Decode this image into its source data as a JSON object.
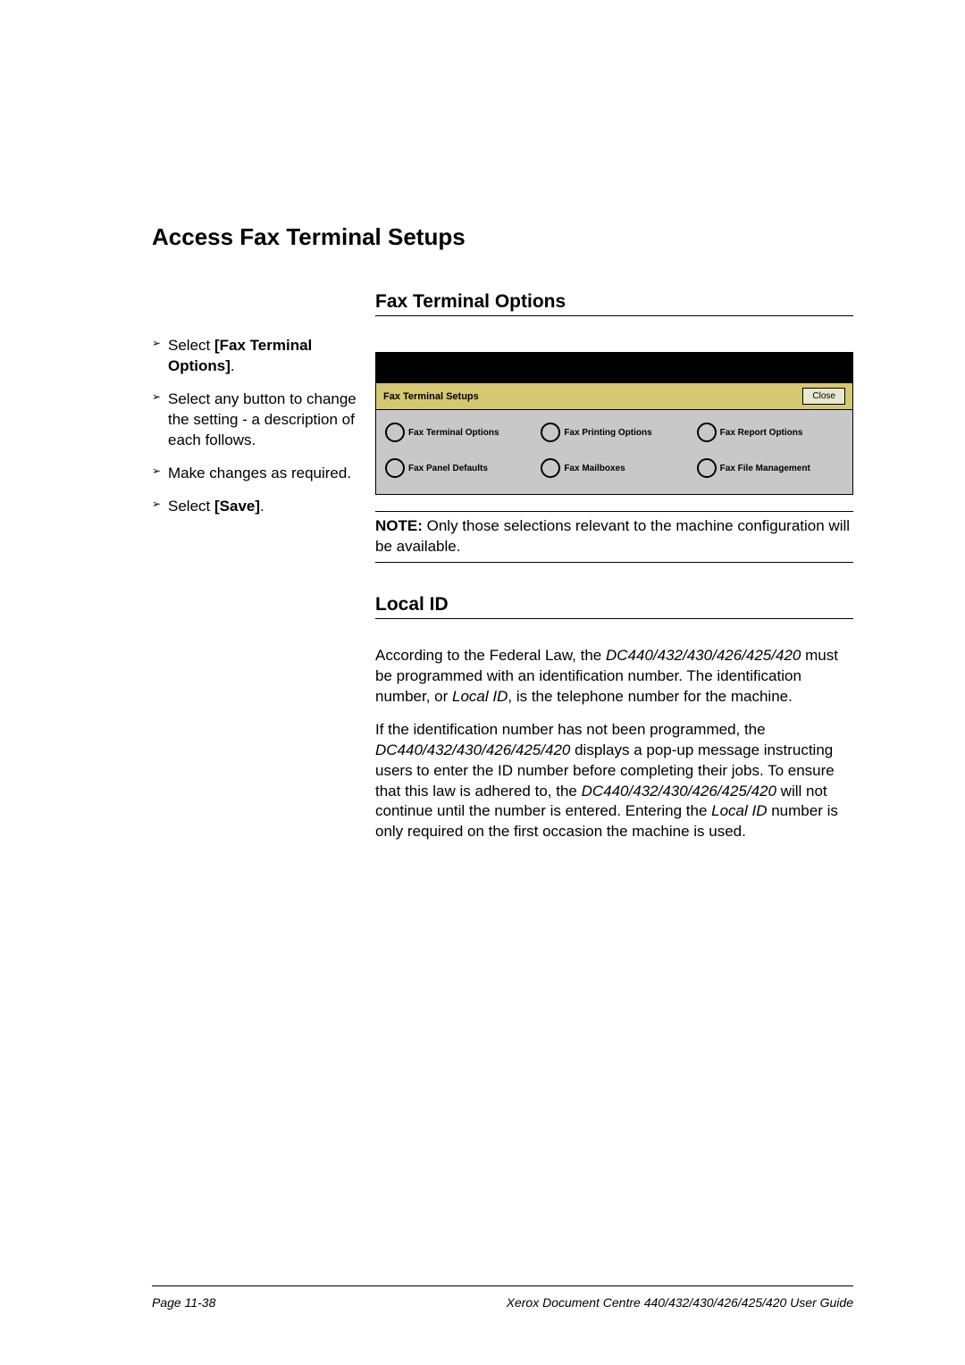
{
  "heading_main": "Access Fax Terminal Setups",
  "section_fax_terminal": {
    "title": "Fax Terminal Options",
    "bullets": [
      {
        "pre": "Select ",
        "bold": "[Fax Terminal Options]",
        "post": "."
      },
      {
        "pre": "Select any button to change the setting - a description of each follows.",
        "bold": "",
        "post": ""
      },
      {
        "pre": "Make changes as required.",
        "bold": "",
        "post": ""
      },
      {
        "pre": "Select ",
        "bold": "[Save]",
        "post": "."
      }
    ],
    "panel": {
      "header_title": "Fax Terminal Setups",
      "close_label": "Close",
      "buttons_row1": [
        "Fax Terminal Options",
        "Fax Printing Options",
        "Fax Report Options"
      ],
      "buttons_row2": [
        "Fax Panel Defaults",
        "Fax Mailboxes",
        "Fax File Management"
      ],
      "colors": {
        "header_bg": "#d4c870",
        "body_bg": "#c8c8c8",
        "close_bg": "#e8e8d0",
        "border": "#000000"
      }
    },
    "note": {
      "label": "NOTE:",
      "text": " Only those selections relevant to the machine configuration will be available."
    }
  },
  "section_local_id": {
    "title": "Local ID",
    "para1_pre": "According to the Federal Law, the ",
    "para1_i1": "DC440/432/430/426/425/420",
    "para1_mid": " must be programmed with an identification number. The identification number, or ",
    "para1_i2": "Local ID",
    "para1_post": ", is the telephone number for the machine.",
    "para2_pre": "If the identification number has not been programmed, the ",
    "para2_i1": "DC440/432/430/426/425/420",
    "para2_mid": " displays a pop-up message instructing users to enter the ID number before completing their jobs. To ensure that this law is adhered to, the ",
    "para2_i2": "DC440/432/430/426/425/420",
    "para2_mid2": " will not continue until the number is entered. Entering the ",
    "para2_i3": "Local ID",
    "para2_post": " number is only required on the first occasion the machine is used."
  },
  "footer": {
    "left": "Page 11-38",
    "right": "Xerox Document Centre 440/432/430/426/425/420 User Guide"
  }
}
